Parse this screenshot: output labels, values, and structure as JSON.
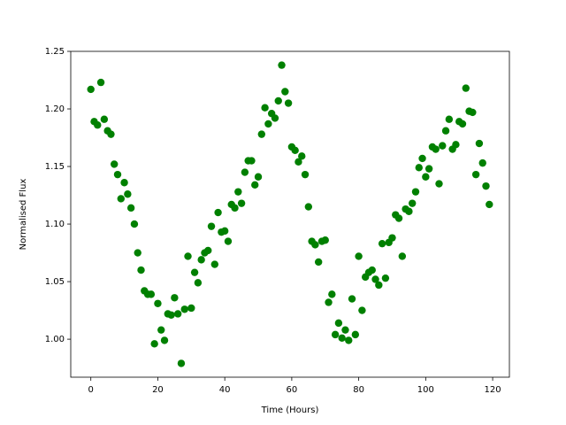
{
  "chart_data": {
    "type": "scatter",
    "xlabel": "Time (Hours)",
    "ylabel": "Normalised Flux",
    "color": "green",
    "x": [
      0,
      1,
      2,
      3,
      4,
      5,
      6,
      7,
      8,
      9,
      10,
      11,
      12,
      13,
      14,
      15,
      16,
      17,
      18,
      19,
      20,
      21,
      22,
      23,
      24,
      25,
      26,
      27,
      28,
      29,
      30,
      31,
      32,
      33,
      34,
      35,
      36,
      37,
      38,
      39,
      40,
      41,
      42,
      43,
      44,
      45,
      46,
      47,
      48,
      49,
      50,
      51,
      52,
      53,
      54,
      55,
      56,
      57,
      58,
      59,
      60,
      61,
      62,
      63,
      64,
      65,
      66,
      67,
      68,
      69,
      70,
      71,
      72,
      73,
      74,
      75,
      76,
      77,
      78,
      79,
      80,
      81,
      82,
      83,
      84,
      85,
      86,
      87,
      88,
      89,
      90,
      91,
      92,
      93,
      94,
      95,
      96,
      97,
      98,
      99,
      100,
      101,
      102,
      103,
      104,
      105,
      106,
      107,
      108,
      109,
      110,
      111,
      112,
      113,
      114,
      115,
      116,
      117,
      118,
      119
    ],
    "values": [
      1.217,
      1.189,
      1.186,
      1.223,
      1.191,
      1.181,
      1.178,
      1.152,
      1.143,
      1.122,
      1.136,
      1.126,
      1.114,
      1.1,
      1.075,
      1.06,
      1.042,
      1.039,
      1.039,
      0.996,
      1.031,
      1.008,
      0.999,
      1.022,
      1.021,
      1.036,
      1.022,
      0.979,
      1.026,
      1.072,
      1.027,
      1.058,
      1.049,
      1.069,
      1.075,
      1.077,
      1.098,
      1.065,
      1.11,
      1.093,
      1.094,
      1.085,
      1.117,
      1.114,
      1.128,
      1.118,
      1.145,
      1.155,
      1.155,
      1.134,
      1.141,
      1.178,
      1.201,
      1.187,
      1.196,
      1.192,
      1.207,
      1.238,
      1.215,
      1.205,
      1.167,
      1.164,
      1.154,
      1.159,
      1.143,
      1.115,
      1.085,
      1.082,
      1.067,
      1.085,
      1.086,
      1.032,
      1.039,
      1.004,
      1.014,
      1.001,
      1.008,
      0.999,
      1.035,
      1.004,
      1.072,
      1.025,
      1.054,
      1.058,
      1.06,
      1.052,
      1.047,
      1.083,
      1.053,
      1.084,
      1.088,
      1.108,
      1.105,
      1.072,
      1.113,
      1.111,
      1.118,
      1.128,
      1.149,
      1.157,
      1.141,
      1.148,
      1.167,
      1.165,
      1.135,
      1.168,
      1.181,
      1.191,
      1.165,
      1.169,
      1.189,
      1.187,
      1.218,
      1.198,
      1.197,
      1.143,
      1.17,
      1.153,
      1.133,
      1.117
    ],
    "xlim": [
      -6,
      125
    ],
    "ylim": [
      0.967,
      1.25
    ],
    "xticks": [
      0,
      20,
      40,
      60,
      80,
      100,
      120
    ],
    "yticks": [
      {
        "value": 1.0,
        "label": "1.00"
      },
      {
        "value": 1.05,
        "label": "1.05"
      },
      {
        "value": 1.1,
        "label": "1.10"
      },
      {
        "value": 1.15,
        "label": "1.15"
      },
      {
        "value": 1.2,
        "label": "1.20"
      },
      {
        "value": 1.25,
        "label": "1.25"
      }
    ]
  }
}
